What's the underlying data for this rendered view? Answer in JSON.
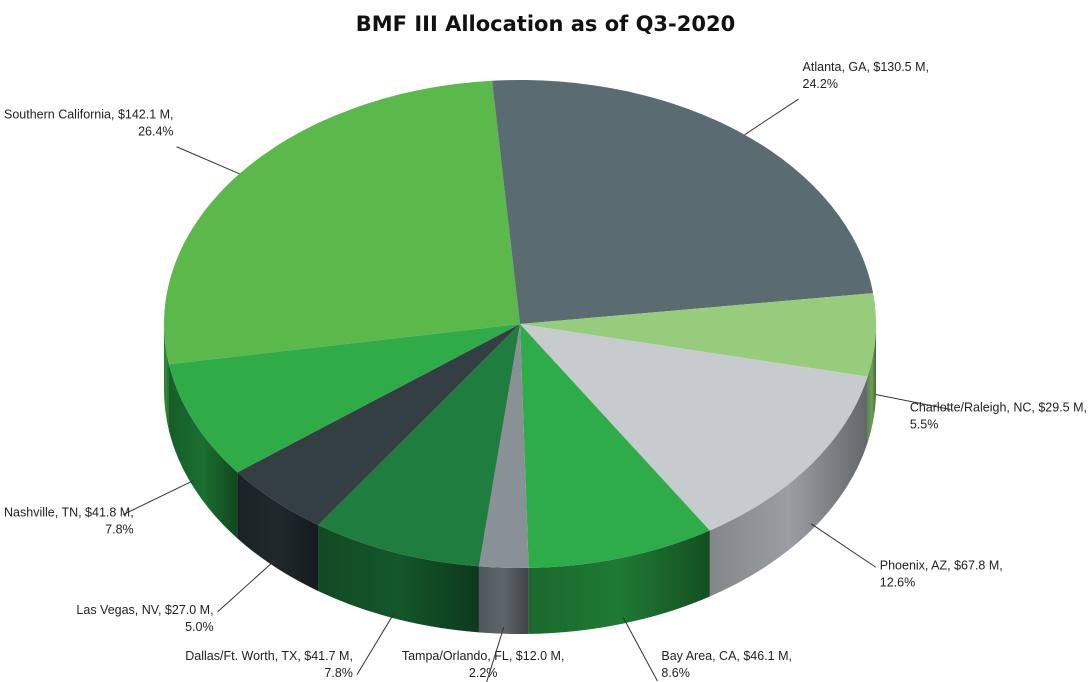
{
  "chart_data": {
    "type": "pie",
    "title": "BMF III Allocation as of Q3-2020",
    "style": "3d-pie",
    "unit": "$ M",
    "slices": [
      {
        "name": "Southern California",
        "value": 142.1,
        "percent": 26.4,
        "label": "Southern California,  $142.1 M,",
        "pct_label": "26.4%",
        "color": "#5bb84a",
        "side_color": "#2e8f3a"
      },
      {
        "name": "Atlanta, GA",
        "value": 130.5,
        "percent": 24.2,
        "label": "Atlanta, GA,  $130.5 M,",
        "pct_label": "24.2%",
        "color": "#5a6c72",
        "side_color": "#3d4a4f"
      },
      {
        "name": "Charlotte/Raleigh, NC",
        "value": 29.5,
        "percent": 5.5,
        "label": "Charlotte/Raleigh, NC,  $29.5 M,",
        "pct_label": "5.5%",
        "color": "#96cc7c",
        "side_color": "#6aa055"
      },
      {
        "name": "Phoenix, AZ",
        "value": 67.8,
        "percent": 12.6,
        "label": "Phoenix, AZ,  $67.8 M,",
        "pct_label": "12.6%",
        "color": "#c8cbce",
        "side_color": "#9a9ea2"
      },
      {
        "name": "Bay Area, CA",
        "value": 46.1,
        "percent": 8.6,
        "label": "Bay Area, CA,  $46.1 M,",
        "pct_label": "8.6%",
        "color": "#2fac4a",
        "side_color": "#1f7a34"
      },
      {
        "name": "Tampa/Orlando, FL",
        "value": 12.0,
        "percent": 2.2,
        "label": "Tampa/Orlando, FL,  $12.0 M,",
        "pct_label": "2.2%",
        "color": "#8a9196",
        "side_color": "#5f666b"
      },
      {
        "name": "Dallas/Ft. Worth, TX",
        "value": 41.7,
        "percent": 7.8,
        "label": "Dallas/Ft. Worth, TX,  $41.7 M,",
        "pct_label": "7.8%",
        "color": "#1f7d3f",
        "side_color": "#14572b"
      },
      {
        "name": "Las Vegas, NV",
        "value": 27.0,
        "percent": 5.0,
        "label": "Las Vegas, NV,  $27.0 M,",
        "pct_label": "5.0%",
        "color": "#343f44",
        "side_color": "#20282c"
      },
      {
        "name": "Nashville, TN",
        "value": 41.8,
        "percent": 7.8,
        "label": "Nashville, TN,  $41.8 M,",
        "pct_label": "7.8%",
        "color": "#2fab48",
        "side_color": "#1b6e30"
      }
    ]
  }
}
